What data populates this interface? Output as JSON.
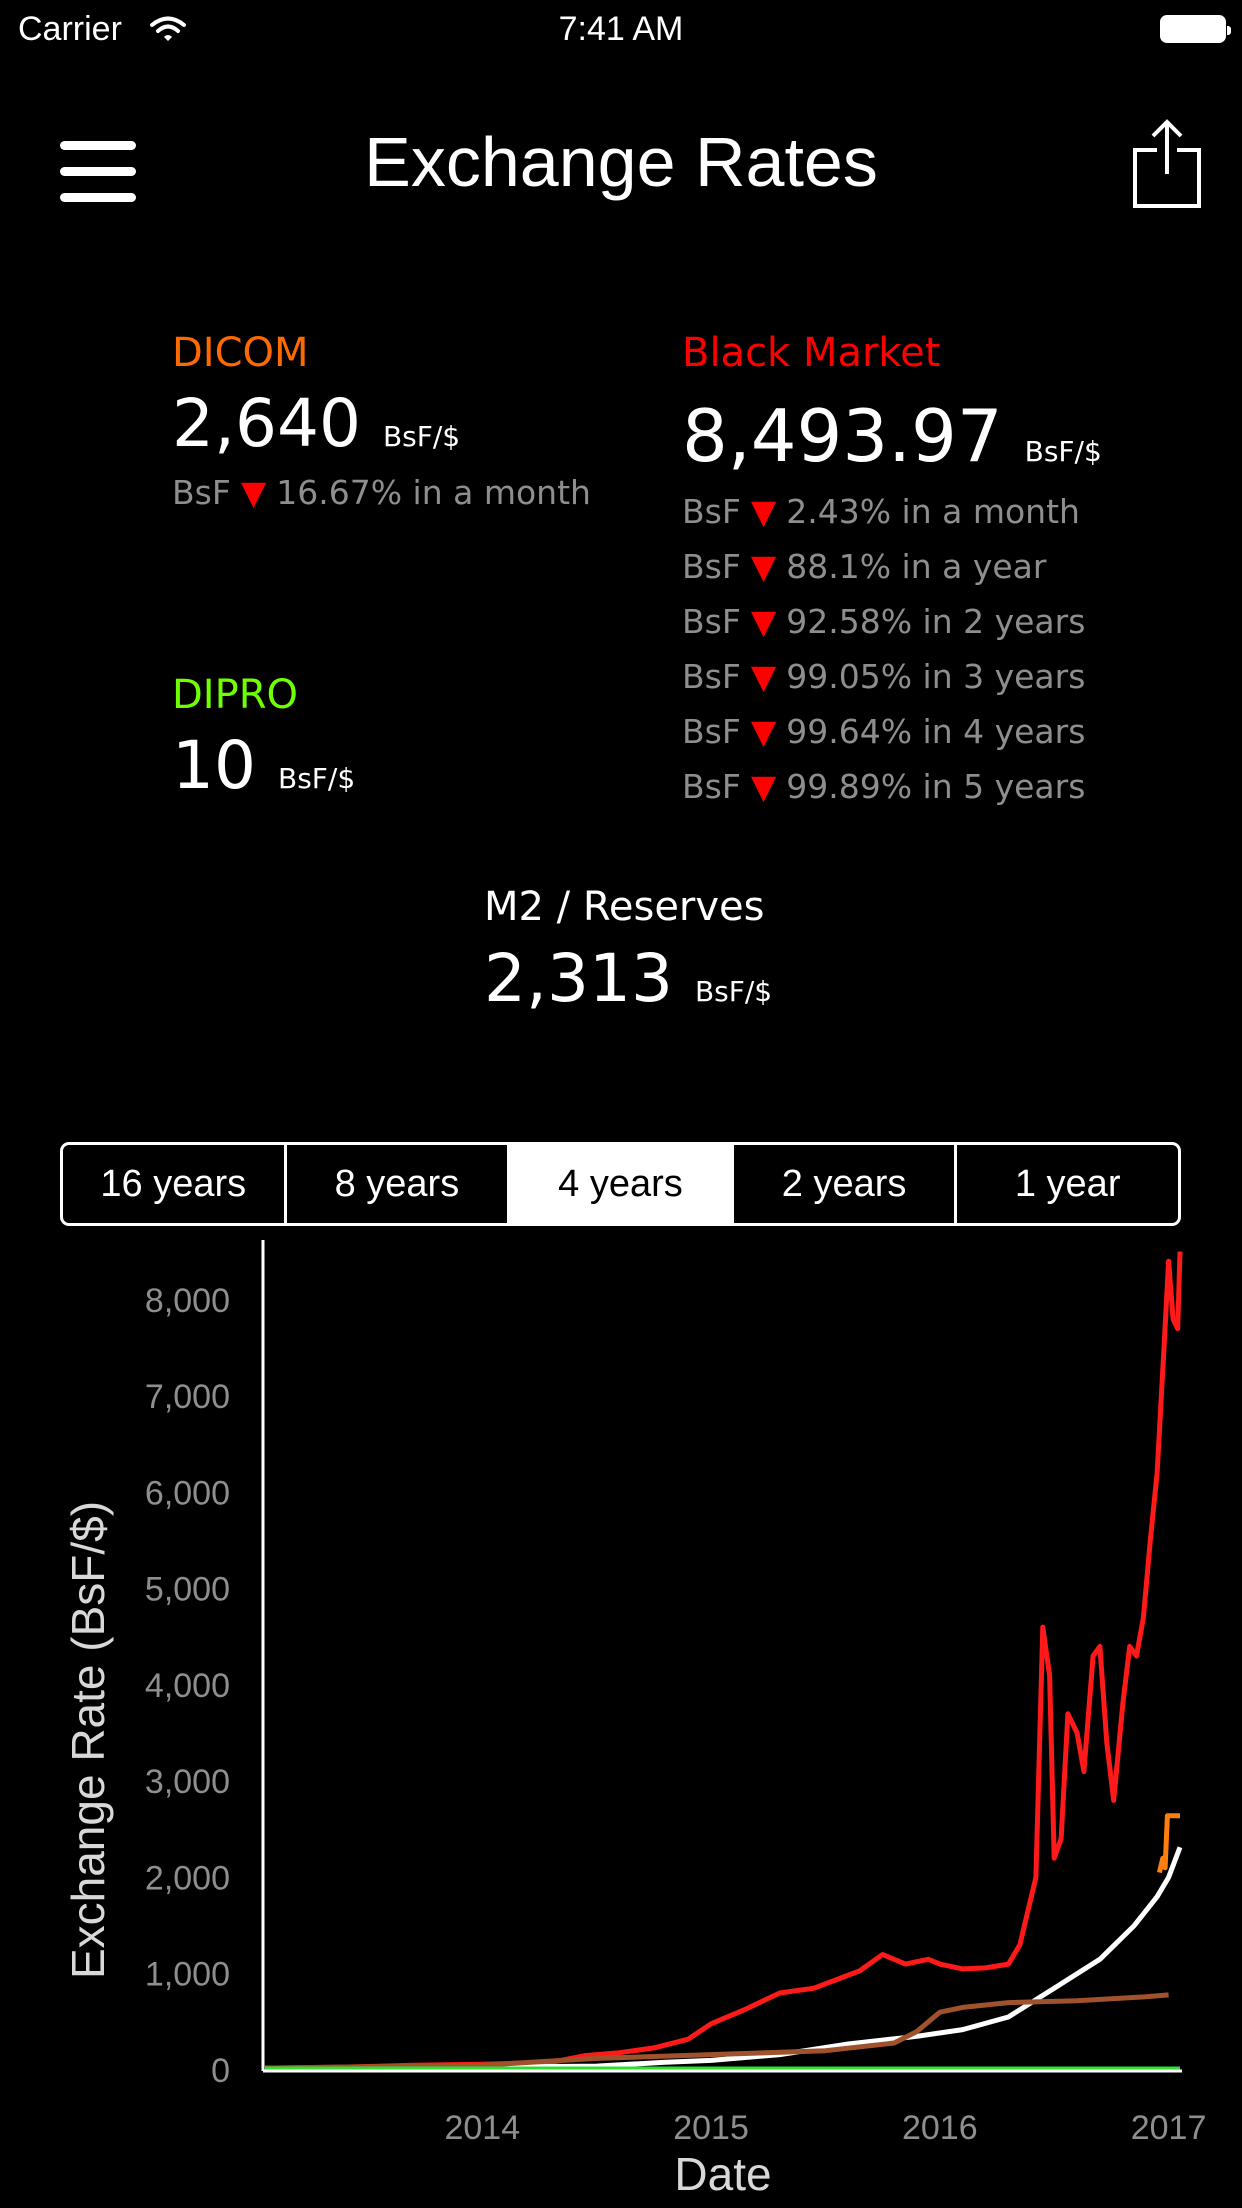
{
  "status_bar": {
    "carrier": "Carrier",
    "time": "7:41 AM"
  },
  "header": {
    "title": "Exchange Rates"
  },
  "dicom": {
    "label": "DICOM",
    "color": "#ff6a00",
    "value": "2,640",
    "unit": "BsF/$",
    "change": {
      "currency": "BsF",
      "text": "16.67% in a month"
    }
  },
  "dipro": {
    "label": "DIPRO",
    "color": "#6eff00",
    "value": "10",
    "unit": "BsF/$"
  },
  "black_market": {
    "label": "Black Market",
    "color": "#ff0000",
    "value": "8,493.97",
    "unit": "BsF/$",
    "changes": [
      {
        "currency": "BsF",
        "text": "2.43% in a month"
      },
      {
        "currency": "BsF",
        "text": "88.1% in a year"
      },
      {
        "currency": "BsF",
        "text": "92.58% in 2 years"
      },
      {
        "currency": "BsF",
        "text": "99.05% in 3 years"
      },
      {
        "currency": "BsF",
        "text": "99.64% in 4 years"
      },
      {
        "currency": "BsF",
        "text": "99.89% in 5 years"
      }
    ]
  },
  "m2_reserves": {
    "label": "M2 / Reserves",
    "value": "2,313",
    "unit": "BsF/$"
  },
  "range_selector": {
    "options": [
      "16 years",
      "8 years",
      "4 years",
      "2 years",
      "1 year"
    ],
    "selected_index": 2
  },
  "chart_data": {
    "type": "line",
    "ylabel": "Exchange Rate (BsF/$)",
    "xlabel": "Date",
    "xlim": [
      2013.05,
      2017.05
    ],
    "ylim": [
      0,
      8600
    ],
    "x_ticks": [
      "2014",
      "2015",
      "2016",
      "2017"
    ],
    "y_ticks": [
      "0",
      "1,000",
      "2,000",
      "3,000",
      "4,000",
      "5,000",
      "6,000",
      "7,000",
      "8,000"
    ],
    "series": [
      {
        "color": "#ff1a1a",
        "points": [
          [
            2013.05,
            20
          ],
          [
            2013.4,
            30
          ],
          [
            2013.7,
            50
          ],
          [
            2014.0,
            60
          ],
          [
            2014.3,
            80
          ],
          [
            2014.45,
            150
          ],
          [
            2014.6,
            180
          ],
          [
            2014.75,
            230
          ],
          [
            2014.9,
            320
          ],
          [
            2015.0,
            480
          ],
          [
            2015.15,
            630
          ],
          [
            2015.3,
            800
          ],
          [
            2015.45,
            850
          ],
          [
            2015.55,
            940
          ],
          [
            2015.65,
            1030
          ],
          [
            2015.75,
            1200
          ],
          [
            2015.85,
            1100
          ],
          [
            2015.95,
            1150
          ],
          [
            2016.0,
            1100
          ],
          [
            2016.1,
            1050
          ],
          [
            2016.2,
            1060
          ],
          [
            2016.3,
            1100
          ],
          [
            2016.35,
            1300
          ],
          [
            2016.38,
            1600
          ],
          [
            2016.42,
            2000
          ],
          [
            2016.45,
            4600
          ],
          [
            2016.48,
            4100
          ],
          [
            2016.5,
            2200
          ],
          [
            2016.53,
            2400
          ],
          [
            2016.56,
            3700
          ],
          [
            2016.6,
            3500
          ],
          [
            2016.63,
            3100
          ],
          [
            2016.67,
            4300
          ],
          [
            2016.7,
            4400
          ],
          [
            2016.73,
            3400
          ],
          [
            2016.76,
            2800
          ],
          [
            2016.8,
            3800
          ],
          [
            2016.83,
            4400
          ],
          [
            2016.86,
            4300
          ],
          [
            2016.89,
            4700
          ],
          [
            2016.92,
            5500
          ],
          [
            2016.95,
            6200
          ],
          [
            2016.98,
            7500
          ],
          [
            2017.0,
            8400
          ],
          [
            2017.02,
            7800
          ],
          [
            2017.04,
            7700
          ],
          [
            2017.05,
            8500
          ]
        ]
      },
      {
        "color": "#ff7f0e",
        "points": [
          [
            2016.96,
            2050
          ],
          [
            2016.975,
            2200
          ],
          [
            2016.985,
            2100
          ],
          [
            2016.995,
            2640
          ],
          [
            2017.03,
            2640
          ],
          [
            2017.05,
            2640
          ]
        ]
      },
      {
        "color": "#ffffff",
        "points": [
          [
            2013.05,
            20
          ],
          [
            2013.5,
            25
          ],
          [
            2014.0,
            30
          ],
          [
            2014.5,
            40
          ],
          [
            2014.8,
            80
          ],
          [
            2015.0,
            100
          ],
          [
            2015.3,
            160
          ],
          [
            2015.6,
            270
          ],
          [
            2015.9,
            350
          ],
          [
            2016.1,
            420
          ],
          [
            2016.3,
            550
          ],
          [
            2016.5,
            850
          ],
          [
            2016.7,
            1150
          ],
          [
            2016.85,
            1500
          ],
          [
            2016.95,
            1800
          ],
          [
            2017.0,
            2000
          ],
          [
            2017.05,
            2313
          ]
        ]
      },
      {
        "color": "#a0522d",
        "points": [
          [
            2013.05,
            20
          ],
          [
            2014.0,
            50
          ],
          [
            2014.5,
            120
          ],
          [
            2015.0,
            160
          ],
          [
            2015.5,
            200
          ],
          [
            2015.8,
            280
          ],
          [
            2015.9,
            400
          ],
          [
            2016.0,
            600
          ],
          [
            2016.1,
            650
          ],
          [
            2016.3,
            700
          ],
          [
            2016.6,
            720
          ],
          [
            2016.9,
            760
          ],
          [
            2017.0,
            780
          ]
        ]
      },
      {
        "color": "#9b30ff",
        "points": [
          [
            2013.5,
            6
          ],
          [
            2014.0,
            6
          ],
          [
            2014.5,
            6
          ],
          [
            2015.0,
            6
          ],
          [
            2015.5,
            6
          ],
          [
            2015.92,
            6
          ]
        ]
      },
      {
        "color": "#33dd33",
        "points": [
          [
            2013.05,
            10
          ],
          [
            2013.5,
            10
          ],
          [
            2015.92,
            10
          ],
          [
            2017.05,
            10
          ]
        ]
      }
    ]
  }
}
